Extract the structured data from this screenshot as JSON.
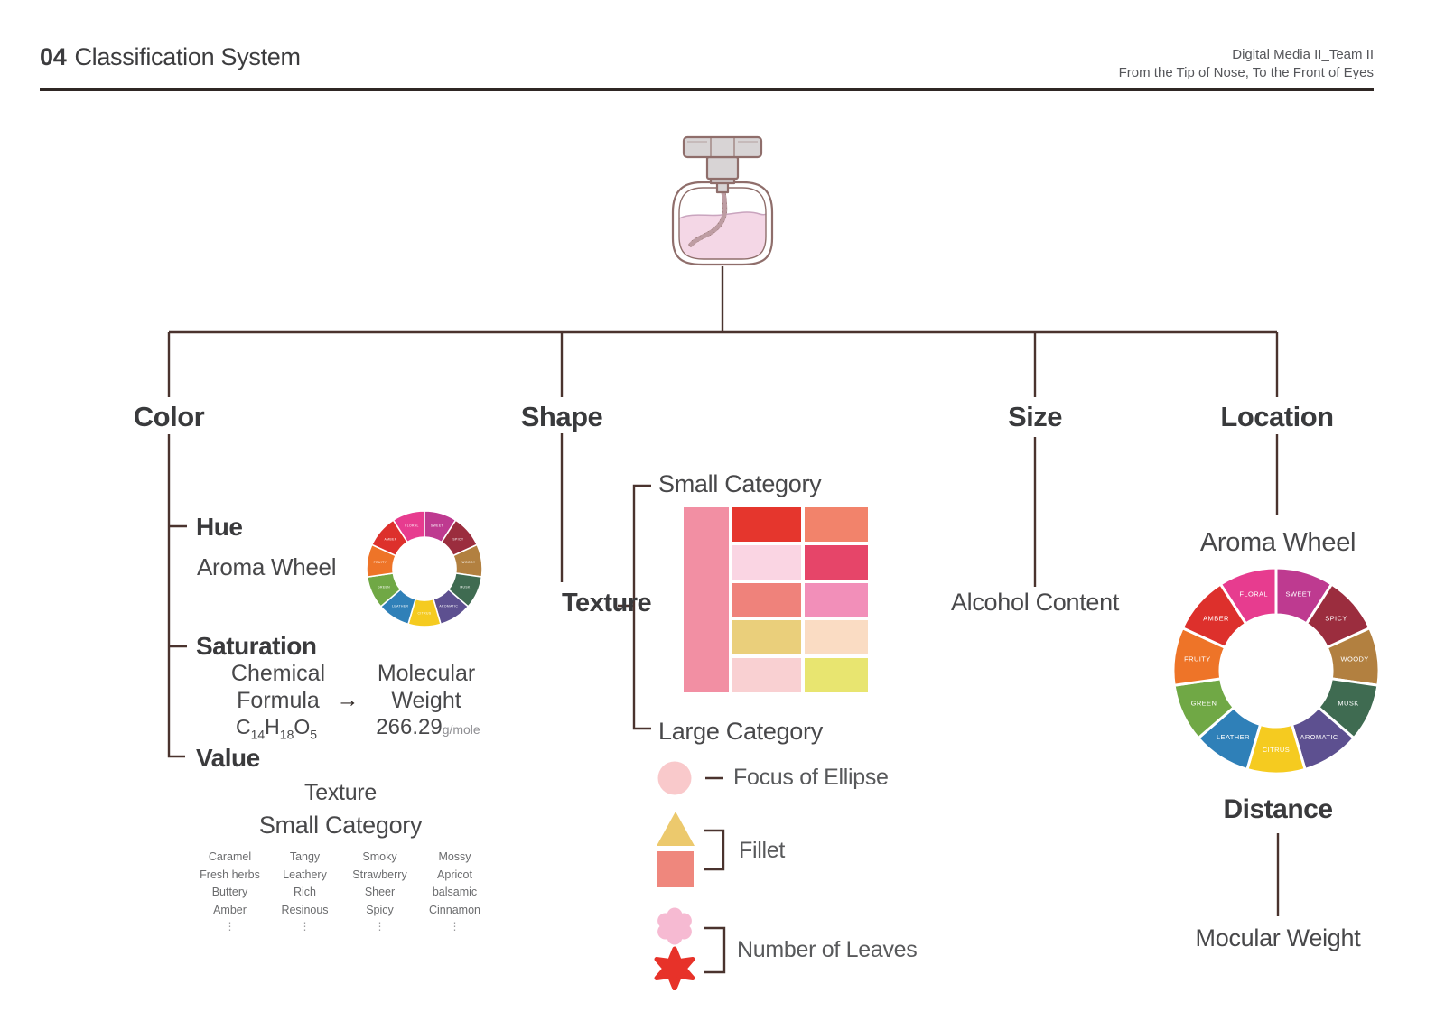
{
  "page": {
    "title_number": "04",
    "title": "Classification System",
    "credit_line1": "Digital Media II_Team II",
    "credit_line2": "From the Tip of Nose, To the Front of Eyes"
  },
  "tree": {
    "root": "perfume-bottle",
    "branches": [
      "Color",
      "Shape",
      "Size",
      "Location"
    ]
  },
  "color_branch": {
    "label": "Color",
    "hue": {
      "label": "Hue",
      "sublabel": "Aroma Wheel"
    },
    "saturation": {
      "label": "Saturation",
      "left_l1": "Chemical",
      "left_l2": "Formula",
      "arrow": "→",
      "right_l1": "Molecular",
      "right_l2": "Weight",
      "formula": {
        "e1": "C",
        "n1": "14",
        "e2": "H",
        "n2": "18",
        "e3": "O",
        "n3": "5"
      },
      "weight_value": "266.29",
      "weight_unit": "g/mole"
    },
    "value": {
      "label": "Value",
      "texture_label": "Texture",
      "small_category_label": "Small Category",
      "columns": [
        [
          "Caramel",
          "Fresh herbs",
          "Buttery",
          "Amber"
        ],
        [
          "Tangy",
          "Leathery",
          "Rich",
          "Resinous"
        ],
        [
          "Smoky",
          "Strawberry",
          "Sheer",
          "Spicy"
        ],
        [
          "Mossy",
          "Apricot",
          "balsamic",
          "Cinnamon"
        ]
      ],
      "more_indicator": "⋮"
    }
  },
  "shape_branch": {
    "label": "Shape",
    "texture_label": "Texture",
    "small_category_label": "Small Category",
    "large_category_label": "Large Category",
    "grid": {
      "left_bar_color": "#F28FA3",
      "columns": [
        [
          "#E5362D",
          "#FAD5E3",
          "#EF827B",
          "#EACF7B",
          "#F9D0D2"
        ],
        [
          "#F2836B",
          "#E64569",
          "#F28FB9",
          "#FADCC3",
          "#E8E570"
        ]
      ]
    },
    "legend": [
      {
        "label": "Focus of Ellipse",
        "color": "#F9C9CB"
      },
      {
        "label": "Fillet",
        "color_top": "#ECC96D",
        "color_bottom": "#EF877D"
      },
      {
        "label": "Number of Leaves",
        "color_top": "#F6BAD2",
        "color_bottom": "#E73229"
      }
    ]
  },
  "size_branch": {
    "label": "Size",
    "item": "Alcohol Content"
  },
  "location_branch": {
    "label": "Location",
    "wheel_title": "Aroma Wheel",
    "distance_label": "Distance",
    "weight_label": "Mocular Weight"
  },
  "aroma_wheel": {
    "type": "donut",
    "order": "clockwise, FLORAL ends at 12 o'clock",
    "segments": [
      {
        "label": "FLORAL",
        "color": "#E73C8F"
      },
      {
        "label": "SWEET",
        "color": "#BE3A90"
      },
      {
        "label": "SPICY",
        "color": "#9B2D3E"
      },
      {
        "label": "WOODY",
        "color": "#B28040"
      },
      {
        "label": "MUSK",
        "color": "#3F6B51"
      },
      {
        "label": "AROMATIC",
        "color": "#5D5090"
      },
      {
        "label": "CITRUS",
        "color": "#F5CB20"
      },
      {
        "label": "LEATHER",
        "color": "#2F80B8"
      },
      {
        "label": "GREEN",
        "color": "#70A845"
      },
      {
        "label": "FRUITY",
        "color": "#EE7428"
      },
      {
        "label": "AMBER",
        "color": "#DD302C"
      }
    ]
  },
  "colors": {
    "line": "#4A332E",
    "heading_text": "#393A3C",
    "body_text": "#48484A",
    "muted_text": "#58595B",
    "list_text": "#6B6C6E",
    "bottle_outline": "#8F6E6B",
    "bottle_liquid": "#F4D7E6",
    "bottle_cap": "#D8D4D5"
  }
}
